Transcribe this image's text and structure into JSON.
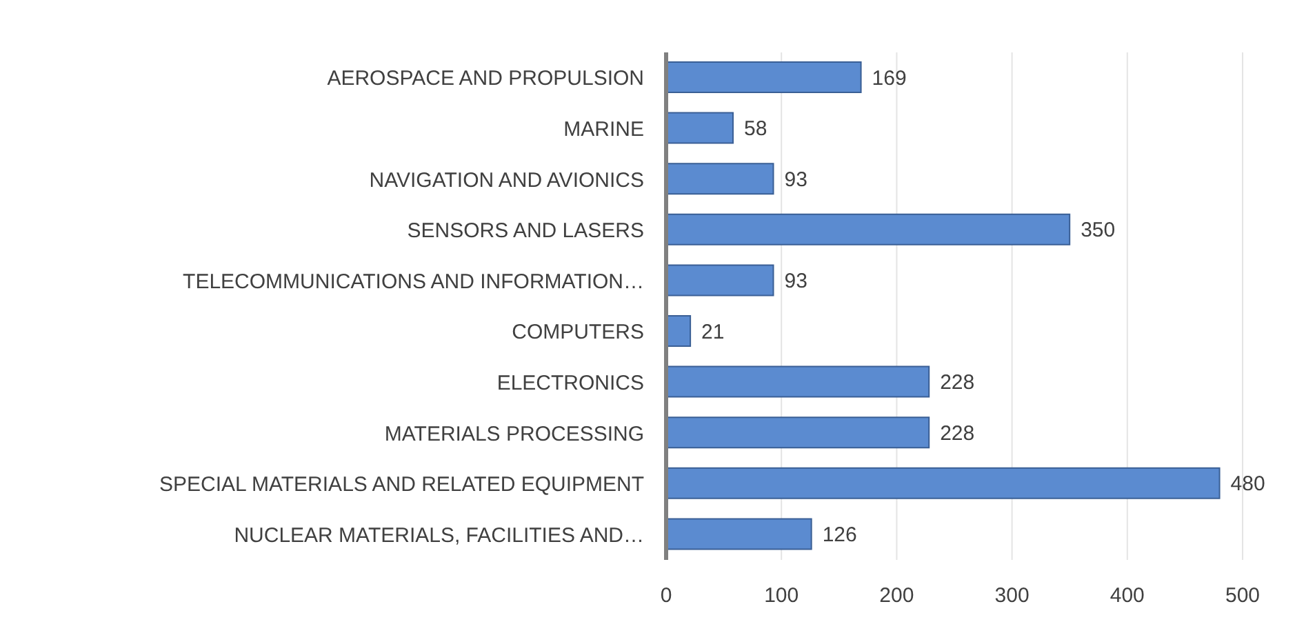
{
  "chart_data": {
    "type": "bar",
    "orientation": "horizontal",
    "categories": [
      "AEROSPACE AND PROPULSION",
      "MARINE",
      "NAVIGATION AND AVIONICS",
      "SENSORS AND LASERS",
      "TELECOMMUNICATIONS AND INFORMATION…",
      "COMPUTERS",
      "ELECTRONICS",
      "MATERIALS PROCESSING",
      "SPECIAL MATERIALS AND RELATED EQUIPMENT",
      "NUCLEAR MATERIALS, FACILITIES AND…"
    ],
    "values": [
      169,
      58,
      93,
      350,
      93,
      21,
      228,
      228,
      480,
      126
    ],
    "color": "#5b8bd0",
    "xlim": [
      0,
      500
    ],
    "xticks": [
      0,
      100,
      200,
      300,
      400,
      500
    ],
    "grid": "x",
    "data_labels": true
  }
}
